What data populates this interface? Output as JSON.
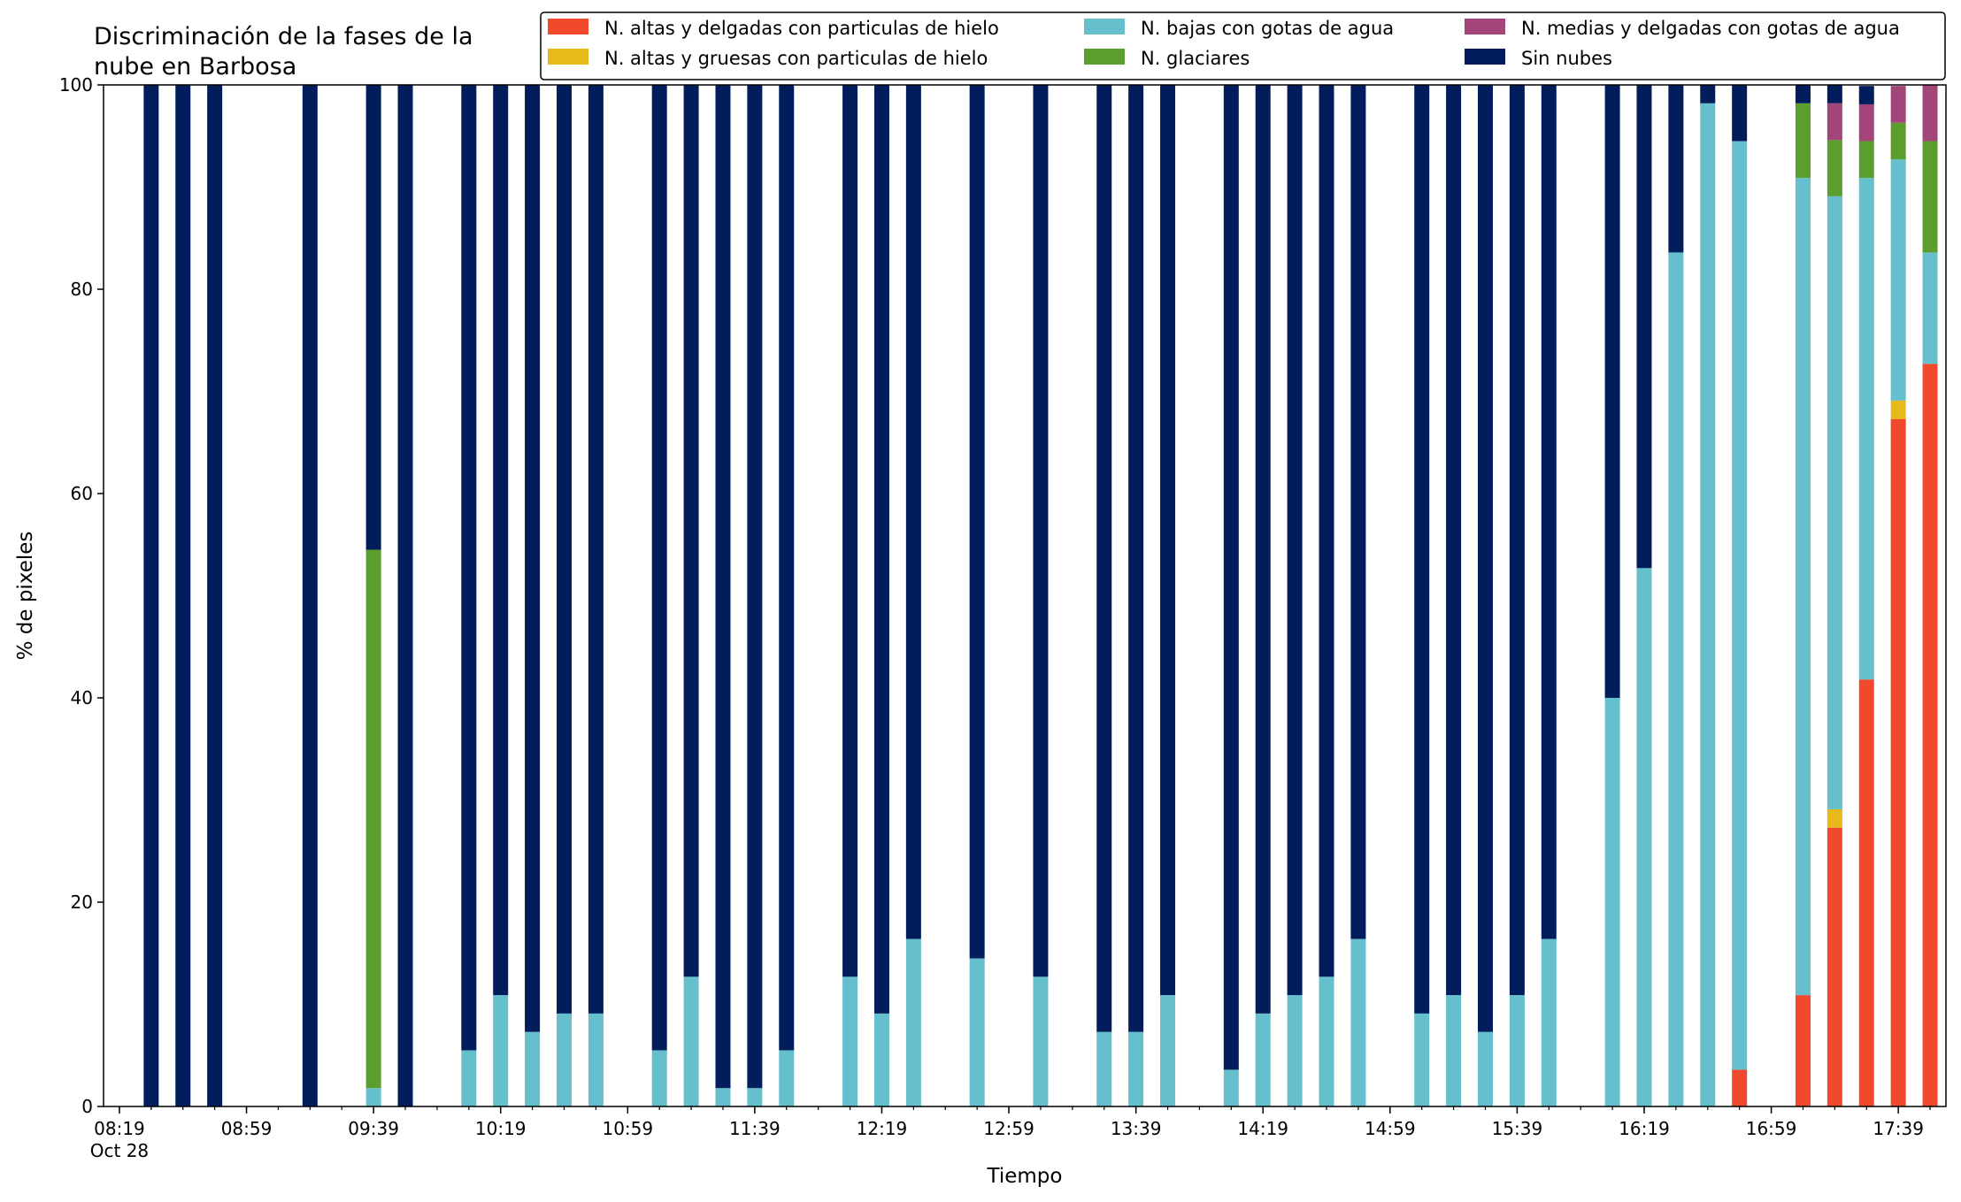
{
  "chart_data": {
    "type": "bar",
    "stacked": true,
    "title": "Discriminación de la fases de la\nnube en Barbosa",
    "xlabel": "Tiempo",
    "ylabel": "% de pixeles",
    "ylim": [
      0,
      100
    ],
    "yticks": [
      0,
      20,
      40,
      60,
      80,
      100
    ],
    "xlim": [
      "2022-10-28 08:14",
      "2022-10-28 17:54"
    ],
    "xticks": [
      {
        "time": "2022-10-28 08:19",
        "label": "08:19",
        "sublabel": "Oct 28"
      },
      {
        "time": "2022-10-28 08:59",
        "label": "08:59",
        "sublabel": ""
      },
      {
        "time": "2022-10-28 09:39",
        "label": "09:39",
        "sublabel": ""
      },
      {
        "time": "2022-10-28 10:19",
        "label": "10:19",
        "sublabel": ""
      },
      {
        "time": "2022-10-28 10:59",
        "label": "10:59",
        "sublabel": ""
      },
      {
        "time": "2022-10-28 11:39",
        "label": "11:39",
        "sublabel": ""
      },
      {
        "time": "2022-10-28 12:19",
        "label": "12:19",
        "sublabel": ""
      },
      {
        "time": "2022-10-28 12:59",
        "label": "12:59",
        "sublabel": ""
      },
      {
        "time": "2022-10-28 13:39",
        "label": "13:39",
        "sublabel": ""
      },
      {
        "time": "2022-10-28 14:19",
        "label": "14:19",
        "sublabel": ""
      },
      {
        "time": "2022-10-28 14:59",
        "label": "14:59",
        "sublabel": ""
      },
      {
        "time": "2022-10-28 15:39",
        "label": "15:39",
        "sublabel": ""
      },
      {
        "time": "2022-10-28 16:19",
        "label": "16:19",
        "sublabel": ""
      },
      {
        "time": "2022-10-28 16:59",
        "label": "16:59",
        "sublabel": ""
      },
      {
        "time": "2022-10-28 17:39",
        "label": "17:39",
        "sublabel": ""
      }
    ],
    "minor_tick_interval_minutes": 10,
    "grid": false,
    "legend_position": "top-right",
    "legend_columns": 3,
    "x": [
      "2022-10-28 08:29",
      "2022-10-28 08:39",
      "2022-10-28 08:49",
      "2022-10-28 09:19",
      "2022-10-28 09:39",
      "2022-10-28 09:49",
      "2022-10-28 10:09",
      "2022-10-28 10:19",
      "2022-10-28 10:29",
      "2022-10-28 10:39",
      "2022-10-28 10:49",
      "2022-10-28 11:09",
      "2022-10-28 11:19",
      "2022-10-28 11:29",
      "2022-10-28 11:39",
      "2022-10-28 11:49",
      "2022-10-28 12:09",
      "2022-10-28 12:19",
      "2022-10-28 12:29",
      "2022-10-28 12:49",
      "2022-10-28 13:09",
      "2022-10-28 13:29",
      "2022-10-28 13:39",
      "2022-10-28 13:49",
      "2022-10-28 14:09",
      "2022-10-28 14:19",
      "2022-10-28 14:29",
      "2022-10-28 14:39",
      "2022-10-28 14:49",
      "2022-10-28 15:09",
      "2022-10-28 15:19",
      "2022-10-28 15:29",
      "2022-10-28 15:39",
      "2022-10-28 15:49",
      "2022-10-28 16:09",
      "2022-10-28 16:19",
      "2022-10-28 16:29",
      "2022-10-28 16:39",
      "2022-10-28 16:49",
      "2022-10-28 17:09",
      "2022-10-28 17:19",
      "2022-10-28 17:29",
      "2022-10-28 17:39",
      "2022-10-28 17:49"
    ],
    "series": [
      {
        "name": "N. altas y delgadas con particulas de hielo",
        "color": "#f0492c",
        "values": [
          0,
          0,
          0,
          0,
          0,
          0,
          0,
          0,
          0,
          0,
          0,
          0,
          0,
          0,
          0,
          0,
          0,
          0,
          0,
          0,
          0,
          0,
          0,
          0,
          0,
          0,
          0,
          0,
          0,
          0,
          0,
          0,
          0,
          0,
          0,
          0,
          0,
          0,
          3.6,
          10.9,
          27.3,
          41.8,
          67.3,
          72.7
        ]
      },
      {
        "name": "N. altas y gruesas con particulas de hielo",
        "color": "#e8b91a",
        "values": [
          0,
          0,
          0,
          0,
          0,
          0,
          0,
          0,
          0,
          0,
          0,
          0,
          0,
          0,
          0,
          0,
          0,
          0,
          0,
          0,
          0,
          0,
          0,
          0,
          0,
          0,
          0,
          0,
          0,
          0,
          0,
          0,
          0,
          0,
          0,
          0,
          0,
          0,
          0,
          0,
          1.8,
          0,
          1.8,
          0
        ]
      },
      {
        "name": "N. bajas con gotas de agua",
        "color": "#66bfcc",
        "values": [
          0,
          0,
          0,
          0,
          1.8,
          0,
          5.5,
          10.9,
          7.3,
          9.1,
          9.1,
          5.5,
          12.7,
          1.8,
          1.8,
          5.5,
          12.7,
          9.1,
          16.4,
          14.5,
          12.7,
          7.3,
          7.3,
          10.9,
          3.6,
          9.1,
          10.9,
          12.7,
          16.4,
          9.1,
          10.9,
          7.3,
          10.9,
          16.4,
          40.0,
          52.7,
          83.6,
          98.2,
          90.9,
          80.0,
          60.0,
          49.1,
          23.6,
          10.9
        ]
      },
      {
        "name": "N. glaciares",
        "color": "#5c9e2e",
        "values": [
          0,
          0,
          0,
          0,
          52.7,
          0,
          0,
          0,
          0,
          0,
          0,
          0,
          0,
          0,
          0,
          0,
          0,
          0,
          0,
          0,
          0,
          0,
          0,
          0,
          0,
          0,
          0,
          0,
          0,
          0,
          0,
          0,
          0,
          0,
          0,
          0,
          0,
          0,
          0,
          7.3,
          5.5,
          3.6,
          3.6,
          10.9
        ]
      },
      {
        "name": "N. medias y delgadas con gotas de agua",
        "color": "#a34579",
        "values": [
          0,
          0,
          0,
          0,
          0,
          0,
          0,
          0,
          0,
          0,
          0,
          0,
          0,
          0,
          0,
          0,
          0,
          0,
          0,
          0,
          0,
          0,
          0,
          0,
          0,
          0,
          0,
          0,
          0,
          0,
          0,
          0,
          0,
          0,
          0,
          0,
          0,
          0,
          0,
          0,
          3.6,
          3.6,
          3.6,
          5.5
        ]
      },
      {
        "name": "Sin nubes",
        "color": "#011d5c",
        "values": [
          100,
          100,
          100,
          100,
          45.5,
          100,
          94.5,
          89.1,
          92.7,
          90.9,
          90.9,
          94.5,
          87.3,
          98.2,
          98.2,
          94.5,
          87.3,
          90.9,
          83.6,
          85.5,
          87.3,
          92.7,
          92.7,
          89.1,
          96.4,
          90.9,
          89.1,
          87.3,
          83.6,
          90.9,
          89.1,
          92.7,
          89.1,
          83.6,
          60.0,
          47.3,
          16.4,
          1.8,
          5.5,
          1.8,
          1.8,
          1.8,
          0,
          0
        ]
      }
    ]
  }
}
